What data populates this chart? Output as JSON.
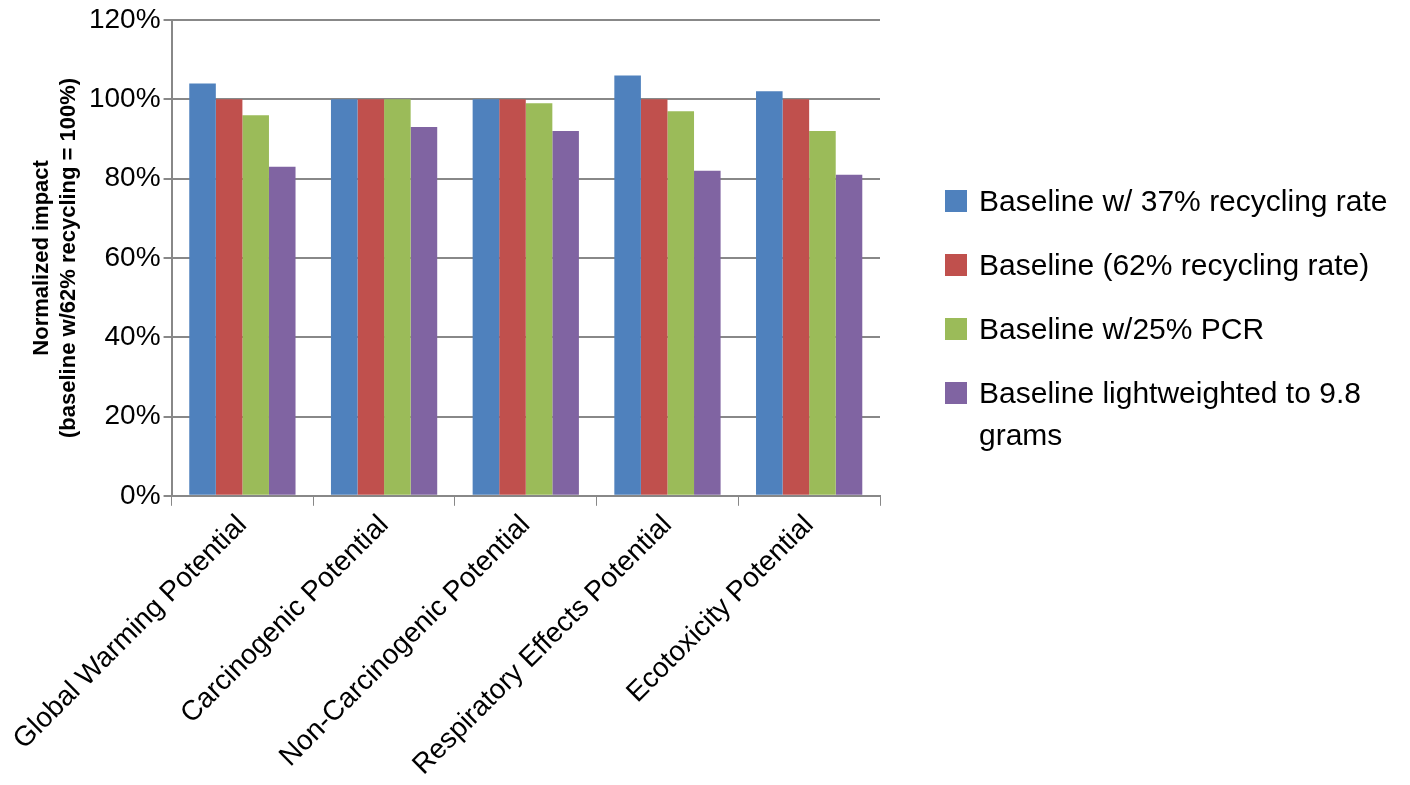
{
  "chart_data": {
    "type": "bar",
    "ylabel": "Normalized impact\n(baseline w/62% recycling = 100%)",
    "categories": [
      "Global Warming Potential",
      "Carcinogenic Potential",
      "Non-Carcinogenic Potential",
      "Respiratory Effects Potential",
      "Ecotoxicity Potential"
    ],
    "series": [
      {
        "name": "Baseline w/  37% recycling rate",
        "color": "#4f81bd",
        "values": [
          104,
          100,
          100,
          106,
          102
        ]
      },
      {
        "name": "Baseline (62% recycling rate)",
        "color": "#c0504d",
        "values": [
          100,
          100,
          100,
          100,
          100
        ]
      },
      {
        "name": "Baseline w/25% PCR",
        "color": "#9bbb59",
        "values": [
          96,
          100,
          99,
          97,
          92
        ]
      },
      {
        "name": "Baseline lightweighted  to 9.8 grams",
        "color": "#8064a2",
        "values": [
          83,
          93,
          92,
          82,
          81
        ]
      }
    ],
    "ylim": [
      0,
      120
    ],
    "yticks": [
      {
        "value": 0,
        "label": "0%"
      },
      {
        "value": 20,
        "label": "20%"
      },
      {
        "value": 40,
        "label": "40%"
      },
      {
        "value": 60,
        "label": "60%"
      },
      {
        "value": 80,
        "label": "80%"
      },
      {
        "value": 100,
        "label": "100%"
      },
      {
        "value": 120,
        "label": "120%"
      }
    ],
    "grid": "y",
    "legend": "right"
  }
}
